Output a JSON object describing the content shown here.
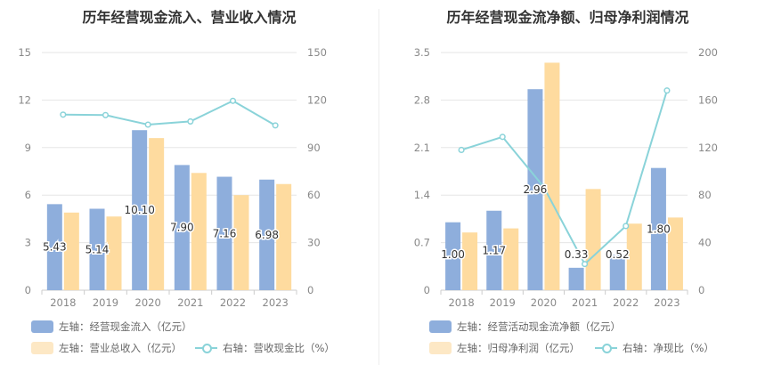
{
  "chart_data": [
    {
      "type": "bar",
      "title": "历年经营现金流入、营业收入情况",
      "categories": [
        "2018",
        "2019",
        "2020",
        "2021",
        "2022",
        "2023"
      ],
      "left_axis": {
        "ticks": [
          "0",
          "3",
          "6",
          "9",
          "12",
          "15"
        ],
        "ylim": [
          0,
          15
        ]
      },
      "right_axis": {
        "ticks": [
          "0",
          "30",
          "60",
          "90",
          "120",
          "150"
        ],
        "ylim": [
          0,
          150
        ]
      },
      "series": [
        {
          "name": "左轴：经营现金流入（亿元）",
          "axis": "left",
          "kind": "bar",
          "color": "#8eaedc",
          "values": [
            5.43,
            5.14,
            10.1,
            7.9,
            7.16,
            6.98
          ],
          "labels": [
            "5.43",
            "5.14",
            "10.10",
            "7.90",
            "7.16",
            "6.98"
          ]
        },
        {
          "name": "左轴：营业总收入（亿元）",
          "axis": "left",
          "kind": "bar",
          "color": "#fedb9f",
          "values": [
            4.9,
            4.65,
            9.6,
            7.4,
            6.0,
            6.7
          ]
        },
        {
          "name": "右轴：营收现金比（%）",
          "axis": "right",
          "kind": "line",
          "color": "#8ad3d9",
          "values": [
            110.8,
            110.5,
            104.5,
            106.5,
            119.5,
            104.0
          ]
        }
      ]
    },
    {
      "type": "bar",
      "title": "历年经营现金流净额、归母净利润情况",
      "categories": [
        "2018",
        "2019",
        "2020",
        "2021",
        "2022",
        "2023"
      ],
      "left_axis": {
        "ticks": [
          "0",
          "0.7",
          "1.4",
          "2.1",
          "2.8",
          "3.5"
        ],
        "ylim": [
          0,
          3.5
        ]
      },
      "right_axis": {
        "ticks": [
          "0",
          "40",
          "80",
          "120",
          "160",
          "200"
        ],
        "ylim": [
          0,
          200
        ]
      },
      "series": [
        {
          "name": "左轴：经营活动现金流净额（亿元）",
          "axis": "left",
          "kind": "bar",
          "color": "#8eaedc",
          "values": [
            1.0,
            1.17,
            2.96,
            0.33,
            0.52,
            1.8
          ],
          "labels": [
            "1.00",
            "1.17",
            "2.96",
            "0.33",
            "0.52",
            "1.80"
          ]
        },
        {
          "name": "左轴：归母净利润（亿元）",
          "axis": "left",
          "kind": "bar",
          "color": "#fedb9f",
          "values": [
            0.85,
            0.91,
            3.35,
            1.49,
            0.98,
            1.07
          ]
        },
        {
          "name": "右轴：净现比（%）",
          "axis": "right",
          "kind": "line",
          "color": "#8ad3d9",
          "values": [
            118,
            129,
            87,
            22,
            54,
            168
          ]
        }
      ]
    }
  ]
}
